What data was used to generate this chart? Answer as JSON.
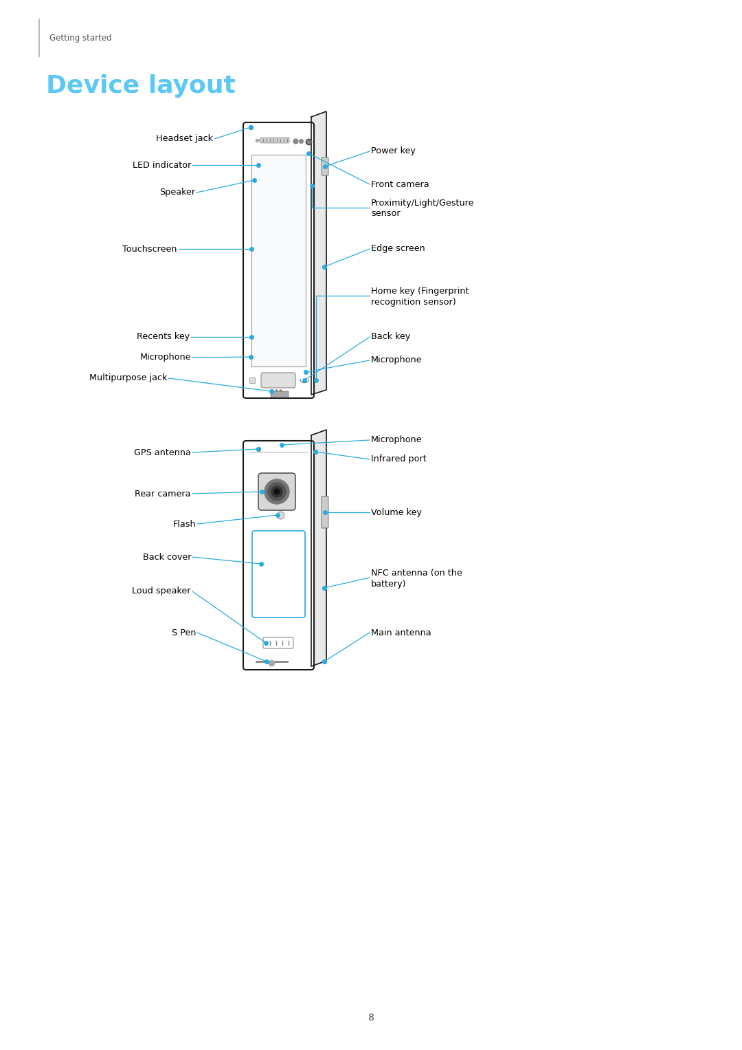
{
  "bg_color": "#ffffff",
  "page_num": "8",
  "section_label": "Getting started",
  "title": "Device layout",
  "title_color": "#5bc8f5",
  "text_color": "#000000",
  "line_color": "#29abe2",
  "dot_color": "#29abe2",
  "label_fontsize": 9.2,
  "title_fontsize": 26,
  "section_fontsize": 8.5
}
